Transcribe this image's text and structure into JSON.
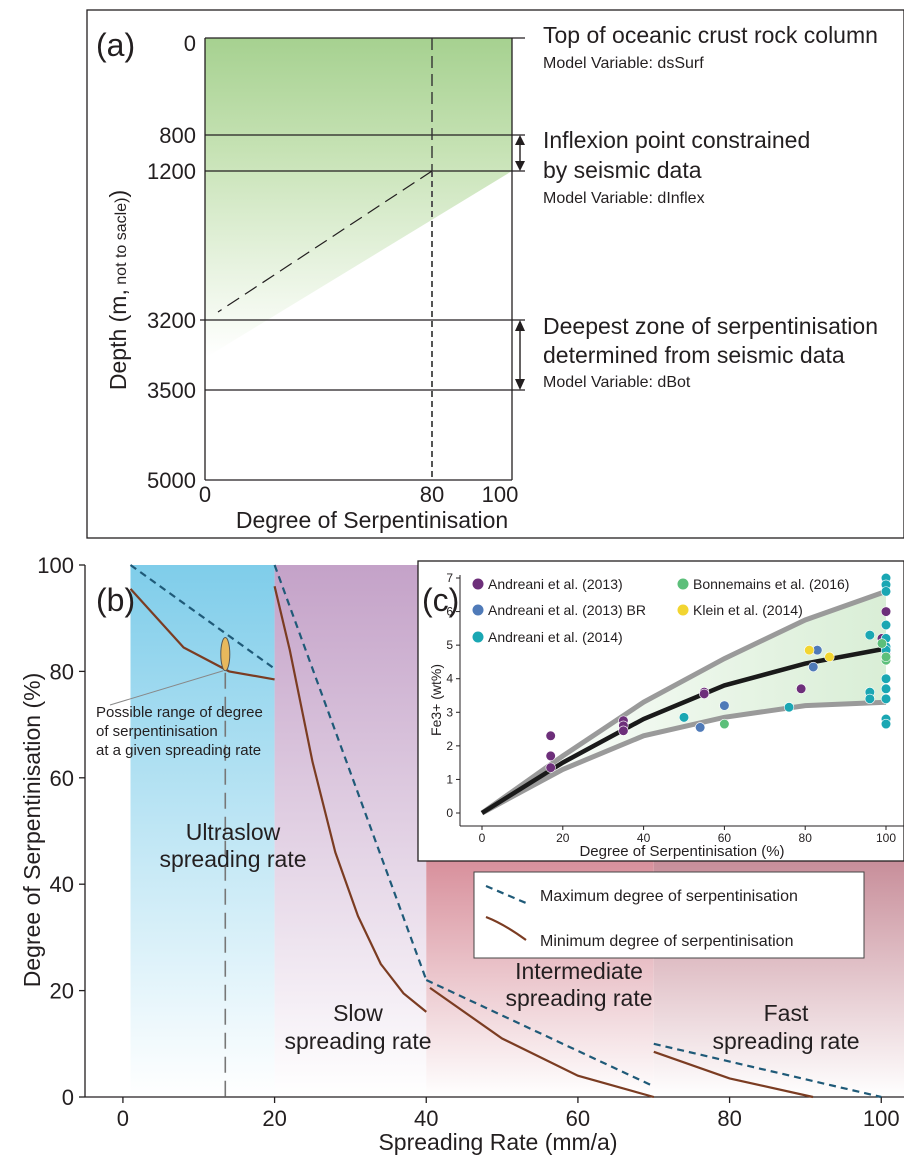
{
  "panel_a": {
    "label": "(a)",
    "ylabel_main": "Depth (m,",
    "ylabel_small": " not to sacle)",
    "xlabel": "Degree of Serpentinisation",
    "depth_ticks": [
      "0",
      "800",
      "1200",
      "3200",
      "3500",
      "5000"
    ],
    "x_ticks": [
      "0",
      "80",
      "100"
    ],
    "annotations": {
      "top_title": "Top of oceanic crust rock column",
      "top_var": "Model Variable: dsSurf",
      "inflex_line1": "Inflexion  point constrained",
      "inflex_line2": "by seismic data",
      "inflex_var": "Model Variable: dInflex",
      "deep_line1": "Deepest zone of serpentinisation",
      "deep_line2": "determined from seismic data",
      "deep_var": "Model Variable: dBot"
    },
    "colors": {
      "green": "#a6d190"
    }
  },
  "panel_b": {
    "label": "(b)",
    "xlabel": "Spreading Rate (mm/a)",
    "ylabel": "Degree of Serpentinisation (%)",
    "x_ticks": [
      "0",
      "20",
      "40",
      "60",
      "80",
      "100"
    ],
    "y_ticks": [
      "0",
      "20",
      "40",
      "60",
      "80",
      "100"
    ],
    "zones": {
      "ultraslow_1": "Ultraslow",
      "ultraslow_2": "spreading rate",
      "slow_1": "Slow",
      "slow_2": "spreading rate",
      "inter_1": "Intermediate",
      "inter_2": "spreading rate",
      "fast_1": "Fast",
      "fast_2": "spreading rate"
    },
    "range_note": [
      "Possible range of degree",
      "of serpentinisation",
      "at a given spreading rate"
    ],
    "legend": {
      "max": "Maximum degree of serpentinisation",
      "min": "Minimum degree of serpentinisation"
    },
    "colors": {
      "ultraslow": "#7fcdea",
      "slow": "#c4a2c8",
      "intermediate": "#d8909c",
      "fast": "#c88e9a",
      "max_line": "#1f5a78",
      "min_line": "#7b3c22",
      "ellipse": "#e8b85c"
    }
  },
  "panel_c": {
    "label": "(c)",
    "xlabel": "Degree of Serpentinisation (%)",
    "ylabel": "Fe3+ (wt%)",
    "x_ticks": [
      "0",
      "20",
      "40",
      "60",
      "80",
      "100"
    ],
    "y_ticks": [
      "0",
      "1",
      "2",
      "3",
      "4",
      "5",
      "6",
      "7"
    ],
    "legend": [
      "Andreani et al. (2013)",
      "Bonnemains et al. (2016)",
      "Andreani et al. (2013) BR",
      "Klein et al. (2014)",
      "Andreani et al. (2014)"
    ]
  },
  "chart_data": [
    {
      "type": "area",
      "panel": "a",
      "x_range": [
        0,
        100
      ],
      "depth_range": [
        0,
        5000
      ],
      "depth_levels": [
        0,
        800,
        1200,
        3200,
        3500,
        5000
      ],
      "serpentinisation_profile": {
        "surface_degree": 100,
        "inflexion_depth": 1200,
        "inflexion_degree": 80,
        "bottom_depth": 3200,
        "bottom_degree": 0
      }
    },
    {
      "type": "line",
      "panel": "b",
      "xlim": [
        -5,
        103
      ],
      "ylim": [
        0,
        100
      ],
      "zones": [
        [
          1,
          20
        ],
        [
          20,
          40
        ],
        [
          40,
          70
        ],
        [
          70,
          103
        ]
      ],
      "series": [
        {
          "name": "Maximum degree of serpentinisation",
          "segments": [
            [
              [
                1,
                100
              ],
              [
                20,
                80.5
              ]
            ],
            [
              [
                20,
                100
              ],
              [
                40,
                22
              ]
            ],
            [
              [
                40,
                22
              ],
              [
                70,
                2
              ]
            ],
            [
              [
                70,
                10
              ],
              [
                100,
                0
              ]
            ]
          ]
        },
        {
          "name": "Minimum degree of serpentinisation",
          "segments": [
            [
              [
                1,
                95.5
              ],
              [
                8,
                84.5
              ],
              [
                14,
                80
              ],
              [
                20,
                78.5
              ]
            ],
            [
              [
                20,
                96
              ],
              [
                22,
                84
              ],
              [
                25,
                63
              ],
              [
                28,
                46
              ],
              [
                31,
                34
              ],
              [
                34,
                25
              ],
              [
                37,
                19.5
              ],
              [
                40,
                16
              ]
            ],
            [
              [
                40.5,
                20.5
              ],
              [
                50,
                11
              ],
              [
                60,
                4
              ],
              [
                70,
                0
              ]
            ],
            [
              [
                70,
                8.5
              ],
              [
                80,
                3.5
              ],
              [
                91,
                0
              ]
            ]
          ]
        }
      ],
      "range_marker": {
        "x": 13.5,
        "ymin": 80.5,
        "ymax": 86
      }
    },
    {
      "type": "scatter",
      "panel": "c",
      "xlim": [
        -5,
        101
      ],
      "ylim": [
        -0.3,
        7.3
      ],
      "series": [
        {
          "name": "Andreani et al. (2013)",
          "color": "#6d2f7a",
          "points": [
            [
              17,
              2.3
            ],
            [
              17,
              1.7
            ],
            [
              17,
              1.35
            ],
            [
              35,
              2.75
            ],
            [
              35,
              2.6
            ],
            [
              35,
              2.45
            ],
            [
              55,
              3.6
            ],
            [
              55,
              3.55
            ],
            [
              79,
              3.7
            ],
            [
              99,
              5.2
            ],
            [
              100,
              6.0
            ],
            [
              100,
              4.7
            ]
          ]
        },
        {
          "name": "Andreani et al. (2013) BR",
          "color": "#4f7ab8",
          "points": [
            [
              54,
              2.55
            ],
            [
              60,
              3.2
            ],
            [
              82,
              4.35
            ],
            [
              83,
              4.85
            ]
          ]
        },
        {
          "name": "Andreani et al. (2014)",
          "color": "#1aa7b3",
          "points": [
            [
              50,
              2.85
            ],
            [
              76,
              3.15
            ],
            [
              96,
              5.3
            ],
            [
              96,
              3.6
            ],
            [
              96,
              3.4
            ],
            [
              100,
              7.0
            ],
            [
              100,
              6.8
            ],
            [
              100,
              6.6
            ],
            [
              100,
              5.6
            ],
            [
              100,
              5.2
            ],
            [
              100,
              4.95
            ],
            [
              100,
              4.85
            ],
            [
              100,
              4.0
            ],
            [
              100,
              3.7
            ],
            [
              100,
              3.4
            ],
            [
              100,
              2.8
            ],
            [
              100,
              2.65
            ]
          ]
        },
        {
          "name": "Bonnemains et al. (2016)",
          "color": "#5cbf7a",
          "points": [
            [
              60,
              2.65
            ],
            [
              100,
              4.55
            ],
            [
              100,
              4.65
            ],
            [
              99,
              5.05
            ]
          ]
        },
        {
          "name": "Klein et al. (2014)",
          "color": "#f2d531",
          "points": [
            [
              81,
              4.85
            ],
            [
              86,
              4.65
            ]
          ]
        }
      ],
      "fit_curves": {
        "mean": [
          [
            0,
            0
          ],
          [
            20,
            1.5
          ],
          [
            40,
            2.8
          ],
          [
            60,
            3.8
          ],
          [
            80,
            4.45
          ],
          [
            100,
            4.9
          ]
        ],
        "upper": [
          [
            0,
            0
          ],
          [
            20,
            1.7
          ],
          [
            40,
            3.3
          ],
          [
            60,
            4.6
          ],
          [
            80,
            5.75
          ],
          [
            100,
            6.6
          ]
        ],
        "lower": [
          [
            0,
            0
          ],
          [
            20,
            1.3
          ],
          [
            40,
            2.3
          ],
          [
            60,
            2.85
          ],
          [
            80,
            3.2
          ],
          [
            100,
            3.3
          ]
        ]
      }
    }
  ]
}
